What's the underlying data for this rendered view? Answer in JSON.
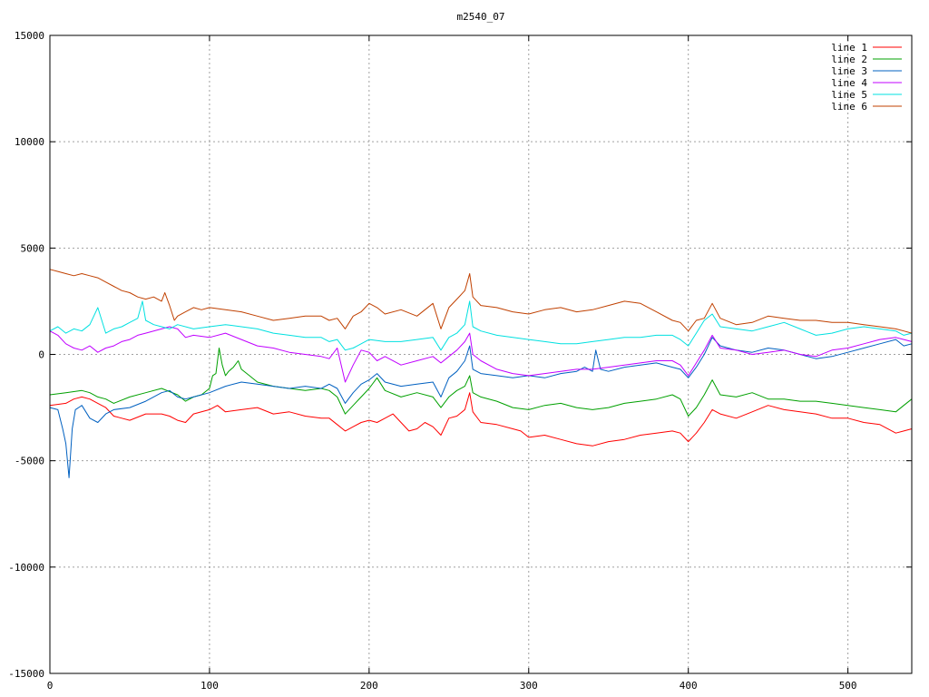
{
  "chart_data": {
    "type": "line",
    "title": "m2540_07",
    "xlabel": "",
    "ylabel": "",
    "xlim": [
      0,
      540
    ],
    "ylim": [
      -15000,
      15000
    ],
    "xticks": [
      0,
      100,
      200,
      300,
      400,
      500
    ],
    "yticks": [
      -15000,
      -10000,
      -5000,
      0,
      5000,
      10000,
      15000
    ],
    "grid": true,
    "legend_position": "top-right",
    "series": [
      {
        "name": "line 1",
        "color": "#ff0000",
        "x": [
          0,
          10,
          15,
          20,
          25,
          30,
          35,
          40,
          45,
          50,
          60,
          70,
          75,
          80,
          85,
          90,
          100,
          105,
          110,
          120,
          130,
          140,
          150,
          160,
          170,
          175,
          180,
          185,
          190,
          195,
          200,
          205,
          210,
          215,
          220,
          225,
          230,
          235,
          240,
          245,
          250,
          255,
          260,
          263,
          265,
          270,
          280,
          290,
          295,
          300,
          310,
          320,
          330,
          340,
          350,
          360,
          370,
          380,
          390,
          395,
          400,
          405,
          410,
          415,
          420,
          430,
          440,
          450,
          460,
          470,
          480,
          490,
          500,
          510,
          520,
          530,
          535,
          540
        ],
        "y": [
          -2400,
          -2300,
          -2100,
          -2000,
          -2100,
          -2300,
          -2500,
          -2900,
          -3000,
          -3100,
          -2800,
          -2800,
          -2900,
          -3100,
          -3200,
          -2800,
          -2600,
          -2400,
          -2700,
          -2600,
          -2500,
          -2800,
          -2700,
          -2900,
          -3000,
          -3000,
          -3300,
          -3600,
          -3400,
          -3200,
          -3100,
          -3200,
          -3000,
          -2800,
          -3200,
          -3600,
          -3500,
          -3200,
          -3400,
          -3800,
          -3000,
          -2900,
          -2600,
          -1800,
          -2700,
          -3200,
          -3300,
          -3500,
          -3600,
          -3900,
          -3800,
          -4000,
          -4200,
          -4300,
          -4100,
          -4000,
          -3800,
          -3700,
          -3600,
          -3700,
          -4100,
          -3700,
          -3200,
          -2600,
          -2800,
          -3000,
          -2700,
          -2400,
          -2600,
          -2700,
          -2800,
          -3000,
          -3000,
          -3200,
          -3300,
          -3700,
          -3600,
          -3500
        ]
      },
      {
        "name": "line 2",
        "color": "#00a000",
        "x": [
          0,
          10,
          20,
          25,
          30,
          35,
          40,
          50,
          60,
          70,
          80,
          85,
          90,
          95,
          100,
          102,
          104,
          106,
          108,
          110,
          112,
          115,
          118,
          120,
          125,
          130,
          140,
          150,
          160,
          170,
          175,
          180,
          185,
          190,
          195,
          200,
          205,
          210,
          220,
          230,
          240,
          245,
          250,
          255,
          260,
          263,
          265,
          270,
          280,
          290,
          300,
          310,
          320,
          330,
          340,
          350,
          360,
          370,
          380,
          390,
          395,
          400,
          405,
          410,
          415,
          420,
          430,
          440,
          450,
          460,
          470,
          480,
          490,
          500,
          510,
          520,
          530,
          535,
          540
        ],
        "y": [
          -1900,
          -1800,
          -1700,
          -1800,
          -2000,
          -2100,
          -2300,
          -2000,
          -1800,
          -1600,
          -1900,
          -2200,
          -2000,
          -1900,
          -1600,
          -1000,
          -900,
          300,
          -500,
          -1000,
          -800,
          -600,
          -300,
          -700,
          -1000,
          -1300,
          -1500,
          -1600,
          -1700,
          -1600,
          -1700,
          -2000,
          -2800,
          -2400,
          -2000,
          -1600,
          -1100,
          -1700,
          -2000,
          -1800,
          -2000,
          -2500,
          -2000,
          -1700,
          -1500,
          -1000,
          -1800,
          -2000,
          -2200,
          -2500,
          -2600,
          -2400,
          -2300,
          -2500,
          -2600,
          -2500,
          -2300,
          -2200,
          -2100,
          -1900,
          -2100,
          -2900,
          -2500,
          -1900,
          -1200,
          -1900,
          -2000,
          -1800,
          -2100,
          -2100,
          -2200,
          -2200,
          -2300,
          -2400,
          -2500,
          -2600,
          -2700,
          -2400,
          -2100
        ]
      },
      {
        "name": "line 3",
        "color": "#0060c0",
        "x": [
          0,
          5,
          8,
          10,
          12,
          14,
          16,
          18,
          20,
          25,
          30,
          35,
          40,
          50,
          60,
          70,
          75,
          80,
          85,
          90,
          100,
          110,
          120,
          130,
          140,
          150,
          160,
          170,
          175,
          180,
          185,
          190,
          195,
          200,
          205,
          210,
          220,
          230,
          240,
          245,
          250,
          255,
          260,
          263,
          265,
          270,
          280,
          290,
          300,
          310,
          320,
          330,
          335,
          340,
          342,
          345,
          350,
          360,
          370,
          380,
          390,
          395,
          400,
          405,
          410,
          415,
          420,
          430,
          440,
          450,
          460,
          470,
          480,
          490,
          500,
          510,
          520,
          530,
          535,
          540
        ],
        "y": [
          -2500,
          -2600,
          -3500,
          -4200,
          -5800,
          -3500,
          -2600,
          -2500,
          -2400,
          -3000,
          -3200,
          -2800,
          -2600,
          -2500,
          -2200,
          -1800,
          -1700,
          -2000,
          -2100,
          -2000,
          -1800,
          -1500,
          -1300,
          -1400,
          -1500,
          -1600,
          -1500,
          -1600,
          -1400,
          -1600,
          -2300,
          -1800,
          -1400,
          -1200,
          -900,
          -1300,
          -1500,
          -1400,
          -1300,
          -2000,
          -1100,
          -800,
          -300,
          400,
          -700,
          -900,
          -1000,
          -1100,
          -1000,
          -1100,
          -900,
          -800,
          -600,
          -800,
          200,
          -700,
          -800,
          -600,
          -500,
          -400,
          -600,
          -700,
          -1100,
          -600,
          0,
          800,
          400,
          200,
          100,
          300,
          200,
          0,
          -200,
          -100,
          100,
          300,
          500,
          700,
          400,
          500
        ]
      },
      {
        "name": "line 4",
        "color": "#c000ff",
        "x": [
          0,
          5,
          10,
          15,
          20,
          25,
          30,
          35,
          40,
          45,
          50,
          55,
          60,
          70,
          75,
          80,
          85,
          90,
          100,
          110,
          120,
          130,
          140,
          150,
          160,
          170,
          175,
          180,
          185,
          190,
          195,
          200,
          205,
          210,
          220,
          230,
          240,
          245,
          250,
          255,
          260,
          263,
          265,
          270,
          280,
          290,
          300,
          310,
          320,
          330,
          340,
          350,
          360,
          370,
          380,
          390,
          395,
          400,
          405,
          410,
          415,
          420,
          430,
          440,
          450,
          460,
          470,
          480,
          490,
          500,
          510,
          520,
          530,
          535,
          540
        ],
        "y": [
          1100,
          900,
          500,
          300,
          200,
          400,
          100,
          300,
          400,
          600,
          700,
          900,
          1000,
          1200,
          1300,
          1200,
          800,
          900,
          800,
          1000,
          700,
          400,
          300,
          100,
          0,
          -100,
          -200,
          300,
          -1300,
          -500,
          200,
          100,
          -300,
          -100,
          -500,
          -300,
          -100,
          -400,
          -100,
          200,
          600,
          1000,
          0,
          -300,
          -700,
          -900,
          -1000,
          -900,
          -800,
          -700,
          -700,
          -600,
          -500,
          -400,
          -300,
          -300,
          -500,
          -1000,
          -400,
          200,
          900,
          300,
          200,
          0,
          100,
          200,
          0,
          -100,
          200,
          300,
          500,
          700,
          800,
          700,
          600
        ]
      },
      {
        "name": "line 5",
        "color": "#00e0e0",
        "x": [
          0,
          5,
          10,
          15,
          20,
          25,
          30,
          35,
          40,
          45,
          50,
          55,
          58,
          60,
          65,
          70,
          75,
          80,
          90,
          100,
          110,
          120,
          130,
          140,
          150,
          160,
          170,
          175,
          180,
          185,
          190,
          195,
          200,
          210,
          220,
          230,
          240,
          245,
          250,
          255,
          260,
          263,
          265,
          270,
          280,
          290,
          300,
          310,
          320,
          330,
          340,
          350,
          360,
          370,
          380,
          390,
          395,
          400,
          405,
          410,
          415,
          420,
          430,
          440,
          450,
          460,
          470,
          480,
          490,
          500,
          510,
          520,
          530,
          535,
          540
        ],
        "y": [
          1100,
          1300,
          1000,
          1200,
          1100,
          1400,
          2200,
          1000,
          1200,
          1300,
          1500,
          1700,
          2500,
          1600,
          1400,
          1300,
          1200,
          1400,
          1200,
          1300,
          1400,
          1300,
          1200,
          1000,
          900,
          800,
          800,
          600,
          700,
          200,
          300,
          500,
          700,
          600,
          600,
          700,
          800,
          200,
          800,
          1000,
          1400,
          2500,
          1300,
          1100,
          900,
          800,
          700,
          600,
          500,
          500,
          600,
          700,
          800,
          800,
          900,
          900,
          700,
          400,
          1000,
          1600,
          1900,
          1300,
          1200,
          1100,
          1300,
          1500,
          1200,
          900,
          1000,
          1200,
          1300,
          1200,
          1100,
          900,
          1000
        ]
      },
      {
        "name": "line 6",
        "color": "#c04000",
        "x": [
          0,
          5,
          10,
          15,
          20,
          25,
          30,
          35,
          40,
          45,
          50,
          55,
          60,
          65,
          70,
          72,
          75,
          78,
          80,
          85,
          90,
          95,
          100,
          110,
          120,
          130,
          140,
          150,
          160,
          170,
          175,
          180,
          185,
          190,
          195,
          200,
          205,
          210,
          220,
          230,
          240,
          245,
          250,
          255,
          260,
          263,
          265,
          270,
          280,
          290,
          300,
          310,
          320,
          330,
          340,
          350,
          360,
          370,
          380,
          390,
          395,
          400,
          405,
          410,
          415,
          420,
          430,
          440,
          450,
          460,
          470,
          480,
          490,
          500,
          510,
          520,
          530,
          535,
          540
        ],
        "y": [
          4000,
          3900,
          3800,
          3700,
          3800,
          3700,
          3600,
          3400,
          3200,
          3000,
          2900,
          2700,
          2600,
          2700,
          2500,
          2900,
          2300,
          1600,
          1800,
          2000,
          2200,
          2100,
          2200,
          2100,
          2000,
          1800,
          1600,
          1700,
          1800,
          1800,
          1600,
          1700,
          1200,
          1800,
          2000,
          2400,
          2200,
          1900,
          2100,
          1800,
          2400,
          1200,
          2200,
          2600,
          3000,
          3800,
          2700,
          2300,
          2200,
          2000,
          1900,
          2100,
          2200,
          2000,
          2100,
          2300,
          2500,
          2400,
          2000,
          1600,
          1500,
          1100,
          1600,
          1700,
          2400,
          1700,
          1400,
          1500,
          1800,
          1700,
          1600,
          1600,
          1500,
          1500,
          1400,
          1300,
          1200,
          1100,
          1000
        ]
      }
    ]
  }
}
